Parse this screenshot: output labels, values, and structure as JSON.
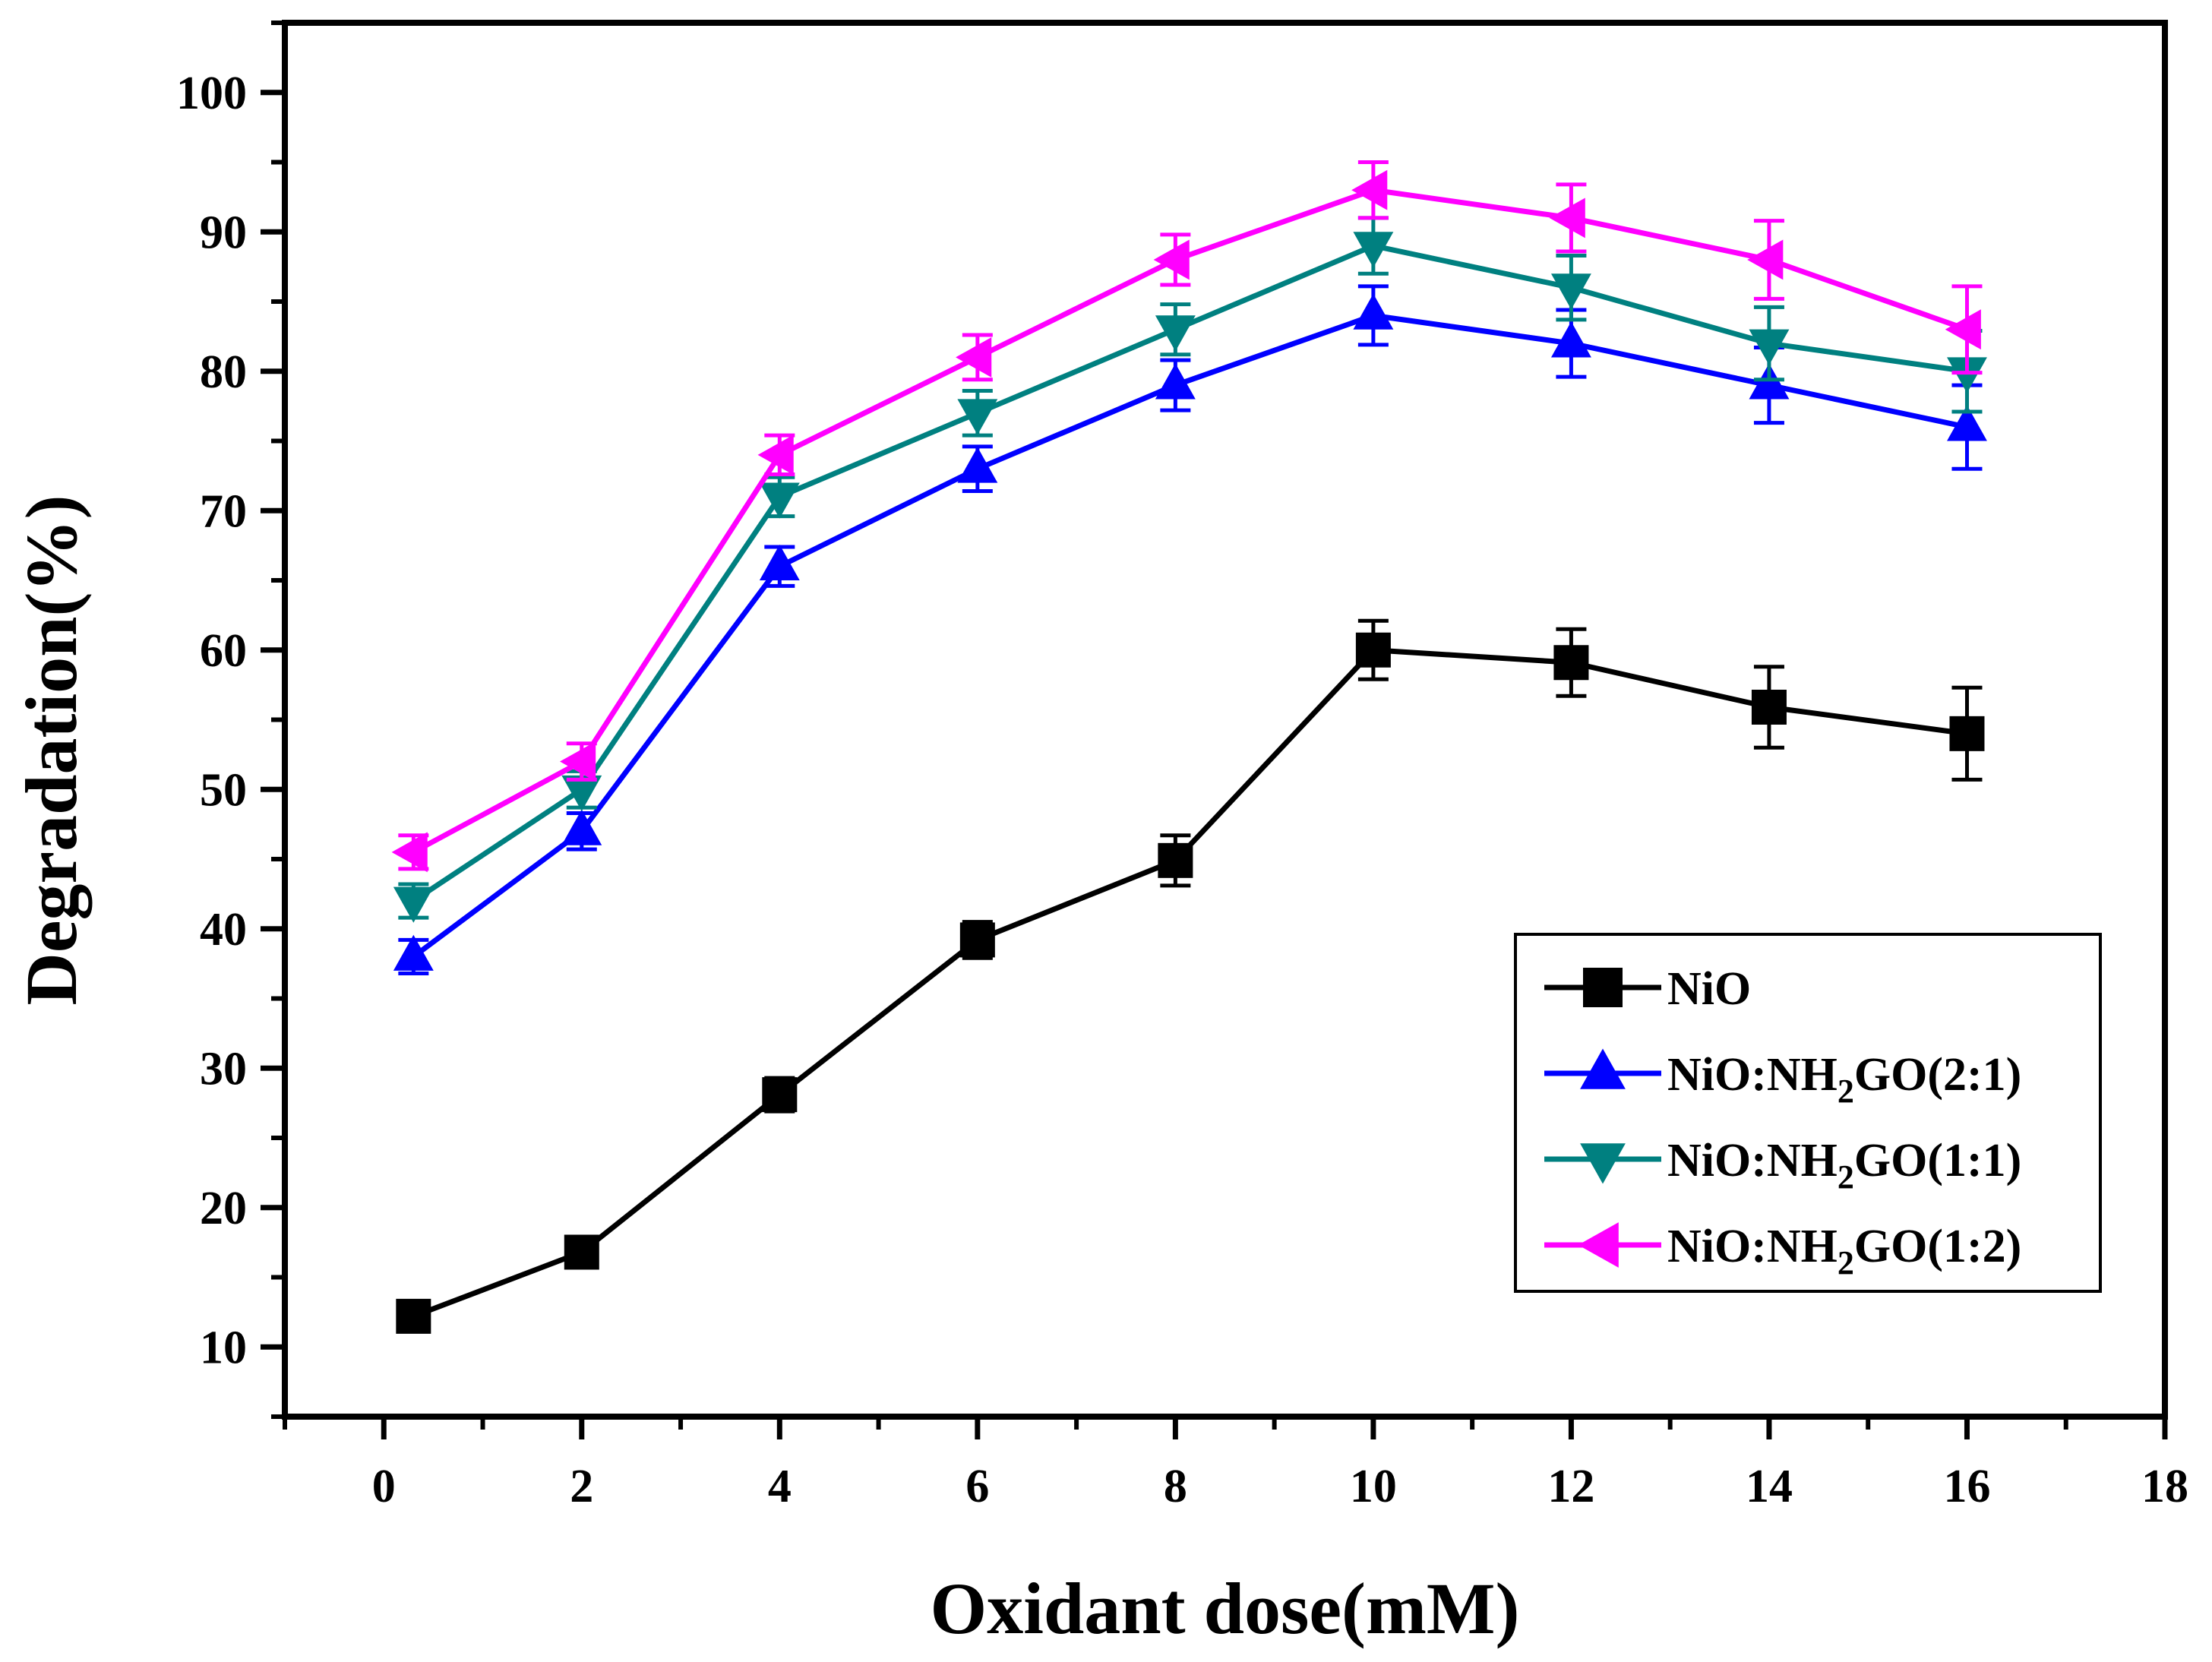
{
  "chart_data": {
    "type": "line",
    "title": "",
    "xlabel": "Oxidant dose(mM)",
    "ylabel": "Degradation(%)",
    "xlim": [
      -1,
      18
    ],
    "ylim": [
      5,
      105
    ],
    "x_ticks": [
      0,
      2,
      4,
      6,
      8,
      10,
      12,
      14,
      16,
      18
    ],
    "y_ticks": [
      10,
      20,
      30,
      40,
      50,
      60,
      70,
      80,
      90,
      100
    ],
    "x": [
      0.3,
      2,
      4,
      6,
      8,
      10,
      12,
      14,
      16
    ],
    "legend_position": "bottom-right",
    "series": [
      {
        "name": "NiO",
        "legend_parts": [
          "NiO"
        ],
        "color": "#000000",
        "marker": "square",
        "values": [
          12.2,
          16.8,
          28.1,
          39.2,
          44.9,
          60.0,
          59.1,
          55.9,
          54.0
        ],
        "errors": [
          0.9,
          1.1,
          1.2,
          1.3,
          1.8,
          2.1,
          2.4,
          2.9,
          3.3
        ]
      },
      {
        "name": "NiO:NH2GO(2:1)",
        "legend_parts": [
          "NiO:NH",
          "2",
          "GO(2:1)"
        ],
        "color": "#0000ff",
        "marker": "triangle-up",
        "values": [
          38.0,
          47.0,
          66.0,
          73.0,
          79.0,
          84.0,
          82.0,
          79.0,
          76.0
        ],
        "errors": [
          1.2,
          1.3,
          1.4,
          1.6,
          1.8,
          2.1,
          2.4,
          2.7,
          3.0
        ]
      },
      {
        "name": "NiO:NH2GO(1:1)",
        "legend_parts": [
          "NiO:NH",
          "2",
          "GO(1:1)"
        ],
        "color": "#008080",
        "marker": "triangle-down",
        "values": [
          42.0,
          50.0,
          71.0,
          77.0,
          83.0,
          89.0,
          86.0,
          82.0,
          80.0
        ],
        "errors": [
          1.2,
          1.3,
          1.4,
          1.6,
          1.8,
          2.0,
          2.3,
          2.6,
          2.9
        ]
      },
      {
        "name": "NiO:NH2GO(1:2)",
        "legend_parts": [
          "NiO:NH",
          "2",
          "GO(1:2)"
        ],
        "color": "#ff00ff",
        "marker": "triangle-left",
        "values": [
          45.5,
          52.0,
          74.0,
          81.0,
          88.0,
          93.0,
          91.0,
          88.0,
          83.0
        ],
        "errors": [
          1.2,
          1.3,
          1.4,
          1.6,
          1.8,
          2.0,
          2.4,
          2.8,
          3.1
        ]
      }
    ]
  }
}
